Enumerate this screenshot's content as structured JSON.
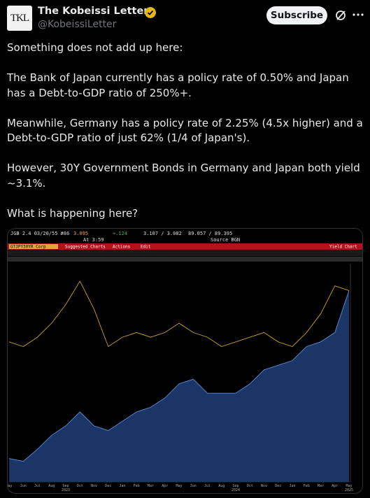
{
  "header": {
    "avatar": "TKL",
    "name": "The Kobeissi Letter",
    "handle": "@KobeissiLetter",
    "button": "Subscribe"
  },
  "post": {
    "paragraphs": [
      "Something does not add up here:",
      "The Bank of Japan currently has a policy rate of 0.50% and Japan has a Debt-to-GDP ratio of 250%+.",
      "Meanwhile, Germany has a policy rate of 2.25% (4.5x higher) and a Debt-to-GDP ratio of just 62% (1/4 of Japan's).",
      "However, 30Y Government Bonds in Germany and Japan both yield ~3.1%.",
      "What is happening here?"
    ]
  },
  "terminal": {
    "security": "JGB 2.4 03/20/55 #86",
    "last": "3.095",
    "change": "+.124",
    "range": "3.107 / 3.082",
    "price": "89.057 / 89.395",
    "time": "At 3:59",
    "source": "Source BGN",
    "ticker": "GTJPY30YR Corp",
    "menus": [
      "Suggested Charts",
      "Actions",
      "Edit"
    ],
    "chart_name": "Yield Chart"
  },
  "chart_data": {
    "type": "line",
    "categories": [
      "May",
      "Jun",
      "Jul",
      "Aug",
      "Sep",
      "Oct",
      "Nov",
      "Dec",
      "Jan",
      "Feb",
      "Mar",
      "Apr",
      "May",
      "Jun",
      "Jul",
      "Aug",
      "Sep",
      "Oct",
      "Nov",
      "Dec",
      "Jan",
      "Feb",
      "Mar",
      "Apr",
      "May"
    ],
    "years": [
      "2023",
      "2024",
      "2025"
    ],
    "ylim": [
      1.0,
      3.3
    ],
    "series": [
      {
        "color": "#5b8dd6",
        "fill": "#1b3566",
        "area": true,
        "values": [
          1.25,
          1.22,
          1.35,
          1.5,
          1.6,
          1.75,
          1.6,
          1.55,
          1.65,
          1.75,
          1.8,
          1.9,
          2.05,
          2.1,
          1.95,
          1.95,
          1.95,
          2.05,
          2.2,
          2.25,
          2.3,
          2.45,
          2.5,
          2.6,
          3.05
        ]
      },
      {
        "color": "#c9a227",
        "area": false,
        "values": [
          2.5,
          2.45,
          2.55,
          2.7,
          2.9,
          3.15,
          2.85,
          2.45,
          2.55,
          2.6,
          2.55,
          2.6,
          2.7,
          2.6,
          2.55,
          2.45,
          2.5,
          2.55,
          2.6,
          2.5,
          2.45,
          2.6,
          2.8,
          3.1,
          3.05
        ]
      }
    ]
  }
}
